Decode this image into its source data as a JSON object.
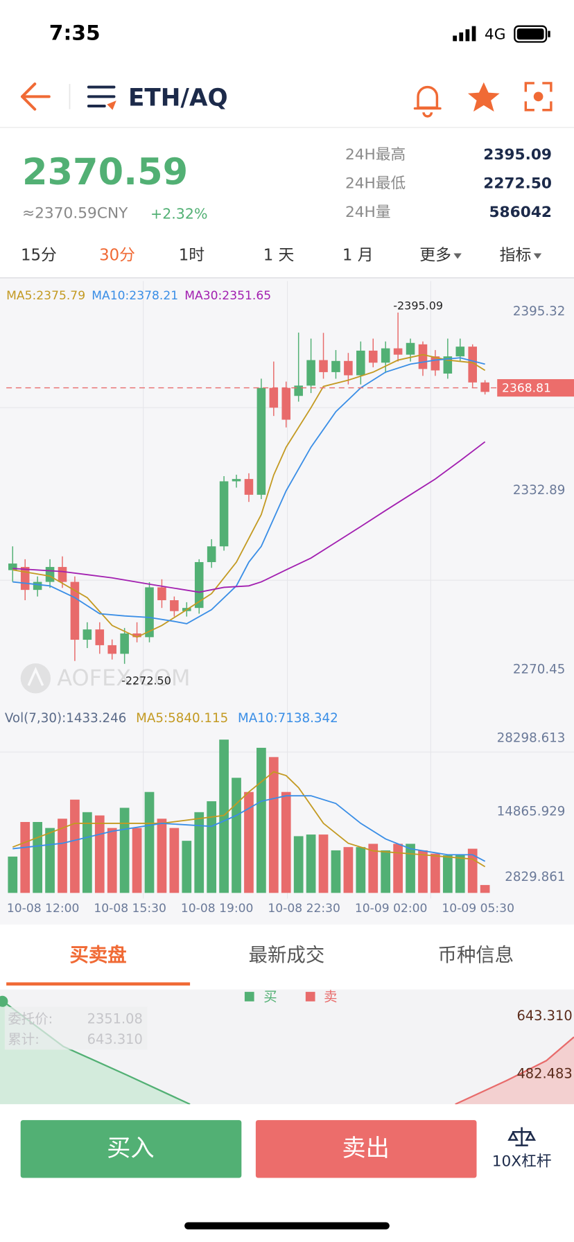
{
  "status_bar": {
    "time": "7:35",
    "network": "4G"
  },
  "header": {
    "pair": "ETH/AQ"
  },
  "ticker": {
    "price": "2370.59",
    "cny": "≈2370.59CNY",
    "change": "+2.32%",
    "stats": [
      {
        "label": "24H最高",
        "value": "2395.09"
      },
      {
        "label": "24H最低",
        "value": "2272.50"
      },
      {
        "label": "24H量",
        "value": "586042"
      }
    ]
  },
  "intervals": {
    "items": [
      "15分",
      "30分",
      "1时",
      "1 天",
      "1 月",
      "更多",
      "指标"
    ],
    "active": 1
  },
  "watermark": "AOFEX.COM",
  "chart_data": [
    {
      "type": "candlestick",
      "ylim": [
        2258.3,
        2406.1
      ],
      "yticks": [
        2270.45,
        2332.89,
        2395.32
      ],
      "up_color": "#52b074",
      "down_color": "#e86b6b",
      "last_price": 2368.81,
      "max_label": "-2395.09",
      "min_label": "-2272.50",
      "candles": [
        {
          "o": 2305.2,
          "h": 2313.5,
          "l": 2301.1,
          "c": 2307.5
        },
        {
          "o": 2306.3,
          "h": 2309,
          "l": 2294.7,
          "c": 2298.3
        },
        {
          "o": 2298.3,
          "h": 2303,
          "l": 2296,
          "c": 2301.1
        },
        {
          "o": 2301.1,
          "h": 2309,
          "l": 2299,
          "c": 2306.3
        },
        {
          "o": 2306.3,
          "h": 2310,
          "l": 2299,
          "c": 2301.1
        },
        {
          "o": 2301.1,
          "h": 2303,
          "l": 2273.5,
          "c": 2280.9
        },
        {
          "o": 2280.9,
          "h": 2287,
          "l": 2278,
          "c": 2284.5
        },
        {
          "o": 2284.5,
          "h": 2287,
          "l": 2276,
          "c": 2279.0
        },
        {
          "o": 2279.0,
          "h": 2281,
          "l": 2274,
          "c": 2276.0
        },
        {
          "o": 2276.0,
          "h": 2285,
          "l": 2272.5,
          "c": 2283.1
        },
        {
          "o": 2283.1,
          "h": 2287,
          "l": 2280,
          "c": 2281.8
        },
        {
          "o": 2281.8,
          "h": 2301,
          "l": 2280,
          "c": 2299.2
        },
        {
          "o": 2299.2,
          "h": 2302,
          "l": 2292,
          "c": 2294.7
        },
        {
          "o": 2294.7,
          "h": 2296,
          "l": 2289,
          "c": 2290.9
        },
        {
          "o": 2290.9,
          "h": 2294,
          "l": 2289,
          "c": 2292.0
        },
        {
          "o": 2292.0,
          "h": 2309,
          "l": 2290,
          "c": 2308.0
        },
        {
          "o": 2308.0,
          "h": 2316,
          "l": 2306,
          "c": 2313.5
        },
        {
          "o": 2313.5,
          "h": 2338,
          "l": 2312,
          "c": 2336.2
        },
        {
          "o": 2336.2,
          "h": 2338.5,
          "l": 2334,
          "c": 2337.0
        },
        {
          "o": 2337.0,
          "h": 2339,
          "l": 2329,
          "c": 2331.5
        },
        {
          "o": 2331.5,
          "h": 2372,
          "l": 2330,
          "c": 2368.8
        },
        {
          "o": 2368.8,
          "h": 2378,
          "l": 2359,
          "c": 2361.9
        },
        {
          "o": 2368.8,
          "h": 2371,
          "l": 2355,
          "c": 2357.7
        },
        {
          "o": 2366.0,
          "h": 2388.1,
          "l": 2364,
          "c": 2369.6
        },
        {
          "o": 2369.6,
          "h": 2386,
          "l": 2367,
          "c": 2378.5
        },
        {
          "o": 2378.5,
          "h": 2388,
          "l": 2372,
          "c": 2374.3
        },
        {
          "o": 2374.3,
          "h": 2382,
          "l": 2372,
          "c": 2378.2
        },
        {
          "o": 2378.2,
          "h": 2381,
          "l": 2370,
          "c": 2373.2
        },
        {
          "o": 2373.2,
          "h": 2385,
          "l": 2370,
          "c": 2381.8
        },
        {
          "o": 2381.8,
          "h": 2386,
          "l": 2376,
          "c": 2377.6
        },
        {
          "o": 2377.6,
          "h": 2385,
          "l": 2374,
          "c": 2382.6
        },
        {
          "o": 2382.6,
          "h": 2395.09,
          "l": 2378,
          "c": 2380.4
        },
        {
          "o": 2380.4,
          "h": 2386,
          "l": 2378,
          "c": 2384.5
        },
        {
          "o": 2384.0,
          "h": 2385,
          "l": 2373,
          "c": 2375.4
        },
        {
          "o": 2379.8,
          "h": 2382,
          "l": 2373,
          "c": 2374.9
        },
        {
          "o": 2373.8,
          "h": 2386,
          "l": 2372,
          "c": 2379.8
        },
        {
          "o": 2379.8,
          "h": 2386,
          "l": 2378,
          "c": 2383.2
        },
        {
          "o": 2383.2,
          "h": 2384,
          "l": 2369,
          "c": 2370.7
        },
        {
          "o": 2370.7,
          "h": 2371.5,
          "l": 2366.5,
          "c": 2367.4
        }
      ],
      "series": [
        {
          "name": "MA5:2375.79",
          "color": "#c39a22",
          "x": [
            0,
            3,
            6,
            8,
            10,
            12,
            14,
            16,
            18,
            20,
            21,
            22,
            24,
            25,
            27,
            29,
            31,
            33,
            35,
            37,
            38
          ],
          "values": [
            2305.3,
            2303.1,
            2295.6,
            2285.9,
            2281.8,
            2285.9,
            2291.4,
            2297.0,
            2308.0,
            2324.6,
            2338.4,
            2348.1,
            2361.9,
            2369.3,
            2371.5,
            2374.3,
            2378.5,
            2380.4,
            2378.5,
            2377.6,
            2374.9
          ]
        },
        {
          "name": "MA10:2378.21",
          "color": "#3a8ee6",
          "x": [
            0,
            3,
            5,
            7,
            9,
            11,
            13,
            14,
            16,
            18,
            19,
            20,
            22,
            24,
            26,
            28,
            30,
            32,
            34,
            36,
            38
          ],
          "values": [
            2301.1,
            2299.7,
            2295.6,
            2290.0,
            2289.2,
            2288.7,
            2287.3,
            2286.5,
            2291.4,
            2299.7,
            2308.0,
            2313.5,
            2332.9,
            2348.1,
            2360.5,
            2368.8,
            2374.3,
            2377.1,
            2378.5,
            2379.3,
            2377.1
          ]
        },
        {
          "name": "MA30:2351.65",
          "color": "#a21fb0",
          "x": [
            0,
            4,
            8,
            11,
            15,
            17,
            19,
            20,
            22,
            24,
            26,
            28,
            30,
            32,
            34,
            36,
            38
          ],
          "values": [
            2305.8,
            2304.7,
            2302.5,
            2300.3,
            2297.5,
            2299.2,
            2299.7,
            2301.1,
            2305.3,
            2309.4,
            2314.9,
            2320.4,
            2326.0,
            2331.5,
            2337.0,
            2343.4,
            2350.0
          ]
        }
      ]
    },
    {
      "type": "bar",
      "title": "Vol(7,30):1433.246",
      "ylim": [
        0,
        29600
      ],
      "yticks": [
        28298.613,
        14865.929,
        2829.861
      ],
      "categories": [
        null,
        null,
        "10-08 12:00",
        null,
        null,
        null,
        null,
        null,
        null,
        "10-08 15:30",
        null,
        null,
        null,
        null,
        null,
        null,
        "10-08 19:00",
        null,
        null,
        null,
        null,
        null,
        null,
        "10-08 22:30",
        null,
        null,
        null,
        null,
        null,
        null,
        "10-09 02:00",
        null,
        null,
        null,
        null,
        null,
        null,
        "10-09 05:30",
        null
      ],
      "values": [
        6660,
        13000,
        13000,
        11900,
        13600,
        17100,
        14800,
        14200,
        11900,
        15600,
        11900,
        18500,
        13600,
        11900,
        9550,
        14800,
        16800,
        28100,
        21100,
        18500,
        26600,
        24900,
        18500,
        10400,
        10700,
        10700,
        7800,
        8400,
        8400,
        9000,
        7800,
        9000,
        9000,
        7800,
        7200,
        6900,
        6900,
        8100,
        1450
      ],
      "series": [
        {
          "name": "MA5:5840.115",
          "color": "#c39a22",
          "x": [
            0,
            5,
            12,
            17,
            19,
            21,
            22,
            23,
            25,
            27,
            29,
            33,
            37,
            38
          ],
          "values": [
            8400,
            12760,
            12760,
            14200,
            18500,
            22200,
            21500,
            19300,
            12760,
            9100,
            7700,
            7000,
            6200,
            4800
          ]
        },
        {
          "name": "MA10:7138.342",
          "color": "#3a8ee6",
          "x": [
            0,
            4,
            8,
            12,
            16,
            18,
            20,
            22,
            24,
            26,
            28,
            30,
            32,
            35,
            37,
            38
          ],
          "values": [
            8100,
            9100,
            11300,
            12760,
            12200,
            14200,
            16800,
            17800,
            17800,
            16400,
            12760,
            9900,
            8100,
            7000,
            7000,
            5800
          ]
        }
      ]
    }
  ],
  "tabs": {
    "items": [
      "买卖盘",
      "最新成交",
      "币种信息"
    ],
    "active": 0
  },
  "depth": {
    "legend": [
      {
        "name": "买",
        "color": "#52b074"
      },
      {
        "name": "卖",
        "color": "#e86b6b"
      }
    ],
    "price_label": "委托价:",
    "price": "2351.08",
    "total_label": "累计:",
    "total": "643.310",
    "axis_labels": [
      "643.310",
      "482.483"
    ]
  },
  "actions": {
    "buy": "买入",
    "sell": "卖出",
    "leverage": "10X杠杆"
  }
}
